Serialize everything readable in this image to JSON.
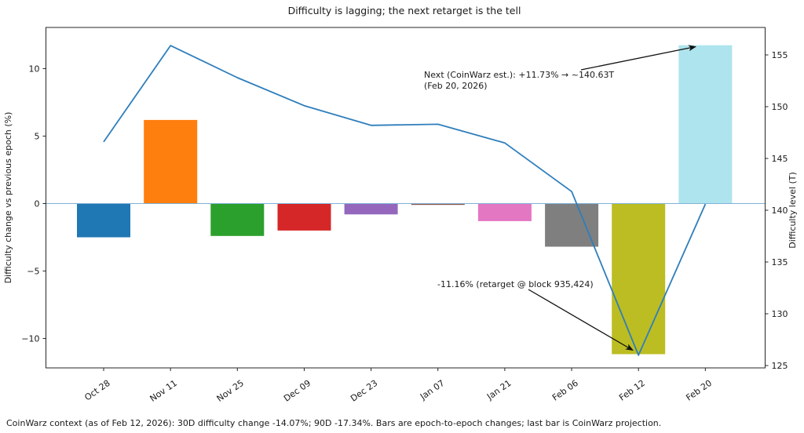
{
  "title": "Difficulty is lagging; the next retarget is the tell",
  "caption": "CoinWarz context (as of Feb 12, 2026): 30D difficulty change -14.07%; 90D -17.34%. Bars are epoch-to-epoch changes; last bar is CoinWarz projection.",
  "chart_data": {
    "type": "bar",
    "subtype": "bar-plus-line-dual-axis",
    "title": "Difficulty is lagging; the next retarget is the tell",
    "categories": [
      "Oct 28",
      "Nov 11",
      "Nov 25",
      "Dec 09",
      "Dec 23",
      "Jan 07",
      "Jan 21",
      "Feb 06",
      "Feb 12",
      "Feb 20"
    ],
    "series": [
      {
        "name": "Difficulty change vs previous epoch (%)",
        "type": "bar",
        "axis": "left",
        "values": [
          -2.5,
          6.2,
          -2.4,
          -2.0,
          -0.8,
          -0.1,
          -1.3,
          -3.2,
          -11.16,
          11.73
        ],
        "colors": [
          "#1f77b4",
          "#ff7f0e",
          "#2ca02c",
          "#d62728",
          "#9467bd",
          "#8c564b",
          "#e377c2",
          "#7f7f7f",
          "#bcbd22",
          "#aee4ee"
        ]
      },
      {
        "name": "Difficulty level (T)",
        "type": "line",
        "axis": "right",
        "values": [
          146.6,
          155.9,
          152.8,
          150.1,
          148.2,
          148.3,
          146.5,
          141.8,
          126.0,
          140.6
        ],
        "color": "#2e7ebc"
      }
    ],
    "ylabel_left": "Difficulty change vs previous epoch (%)",
    "ylabel_right": "Difficulty level (T)",
    "yticks_left": [
      10,
      5,
      0,
      -5,
      -10
    ],
    "yticks_right": [
      155,
      150,
      145,
      140,
      135,
      130,
      125
    ],
    "ylim_left": [
      -12.2,
      13.1
    ],
    "ylim_right": [
      124.6,
      157.8
    ],
    "grid": false,
    "legend": false,
    "zero_line": true,
    "zero_line_color": "#7fb2d6",
    "annotations": [
      {
        "line1": "Next (CoinWarz est.): +11.73% → ~140.63T",
        "line2": "(Feb 20, 2026)",
        "points_to_category": "Feb 20",
        "points_to_value": 11.73
      },
      {
        "line1": "-11.16% (retarget @ block 935,424)",
        "points_to_category": "Feb 12",
        "points_to_value": -11.16
      }
    ]
  }
}
